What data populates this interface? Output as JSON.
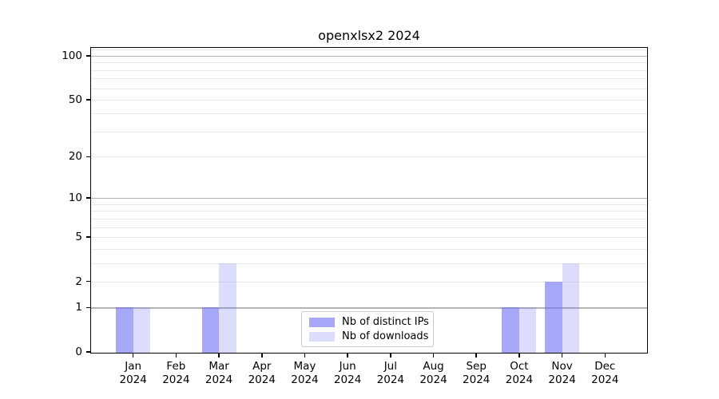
{
  "title": "openxlsx2 2024",
  "chart_data": {
    "type": "bar",
    "title": "openxlsx2 2024",
    "x_categories": [
      "Jan",
      "Feb",
      "Mar",
      "Apr",
      "May",
      "Jun",
      "Jul",
      "Aug",
      "Sep",
      "Oct",
      "Nov",
      "Dec"
    ],
    "x_year_label": "2024",
    "series": [
      {
        "name": "Nb of distinct IPs",
        "color": "#7373f4",
        "opacity": 0.62,
        "values": [
          1,
          0,
          1,
          0,
          0,
          0,
          0,
          0,
          0,
          1,
          2,
          0
        ]
      },
      {
        "name": "Nb of downloads",
        "color": "#7373f4",
        "opacity": 0.25,
        "values": [
          1,
          0,
          3,
          0,
          0,
          0,
          0,
          0,
          0,
          1,
          3,
          0
        ]
      }
    ],
    "y_scale": "log1p",
    "y_ticks": [
      0,
      1,
      2,
      5,
      10,
      20,
      50,
      100
    ],
    "y_gridlines_major": [
      1,
      10,
      100
    ],
    "y_gridlines_minor": [
      2,
      3,
      4,
      5,
      6,
      7,
      8,
      9,
      20,
      30,
      40,
      50,
      60,
      70,
      80,
      90,
      110
    ],
    "ylim": [
      0,
      115
    ],
    "xlabel": "",
    "ylabel": "",
    "grid": true,
    "legend_position": "bottom-center"
  },
  "colors": {
    "bar_fill_base": "#7373f4",
    "bar_dark_rendered": "#a8a8f8",
    "bar_light_rendered": "#dcdcfa",
    "gridline_major": "#b3b3b3",
    "gridline_minor": "#eaeaea",
    "axis": "#000000",
    "legend_border": "#cccccc",
    "background": "#ffffff"
  }
}
